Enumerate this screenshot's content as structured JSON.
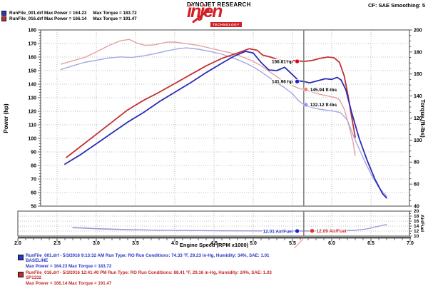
{
  "header": {
    "brand": "DYNOJET RESEARCH",
    "logo_text": "injen",
    "logo_sub": "TECHNOLOGY",
    "correction": "CF: SAE  Smoothing: 5",
    "top_legend": [
      {
        "label_left": "RunFile_001.drf Max Power = 164.23",
        "label_right": "Max Torque = 183.72",
        "color": "#2936c4"
      },
      {
        "label_left": "RunFile_016.drf Max Power = 166.14",
        "label_right": "Max Torque = 191.47",
        "color": "#c42929"
      }
    ]
  },
  "chart_data": {
    "type": "line",
    "x_axis": {
      "label": "Engine Speed (RPM x1000)",
      "min": 2.0,
      "max": 7.0,
      "major_step": 0.5,
      "minor_step": 0.1
    },
    "power_axis": {
      "label": "Power (hp)",
      "min": 50,
      "max": 180,
      "major_step": 10,
      "minor_step": 2
    },
    "torque_axis": {
      "label": "Torque (ft-lbs)",
      "min": 40,
      "max": 200,
      "major_step": 20,
      "minor_step": 5
    },
    "af_axis": {
      "label": "Air/Fuel",
      "min": 10,
      "max": 20,
      "major_step": 2,
      "minor_step": 1
    },
    "grid": true,
    "series": [
      {
        "name": "RunFile_016-torque",
        "axis": "torque",
        "color": "#e2a2a2",
        "width": 1.4,
        "points": [
          [
            2.55,
            169
          ],
          [
            2.7,
            172
          ],
          [
            2.85,
            175
          ],
          [
            3.0,
            180
          ],
          [
            3.15,
            185.5
          ],
          [
            3.3,
            190
          ],
          [
            3.42,
            191.47
          ],
          [
            3.52,
            188
          ],
          [
            3.62,
            186
          ],
          [
            3.75,
            186.5
          ],
          [
            3.9,
            189
          ],
          [
            4.0,
            189
          ],
          [
            4.15,
            187.5
          ],
          [
            4.3,
            186
          ],
          [
            4.45,
            183.5
          ],
          [
            4.6,
            181
          ],
          [
            4.75,
            178.5
          ],
          [
            4.9,
            174.5
          ],
          [
            5.0,
            171.5
          ],
          [
            5.1,
            167.5
          ],
          [
            5.2,
            162.5
          ],
          [
            5.3,
            157.5
          ],
          [
            5.4,
            153
          ],
          [
            5.5,
            149.5
          ],
          [
            5.58,
            147
          ],
          [
            5.644,
            145.94
          ],
          [
            5.75,
            143.5
          ],
          [
            5.85,
            141.5
          ],
          [
            5.95,
            140
          ],
          [
            6.05,
            138.5
          ],
          [
            6.1,
            136.5
          ],
          [
            6.16,
            128
          ],
          [
            6.22,
            113
          ],
          [
            6.27,
            99
          ],
          [
            6.3,
            86
          ]
        ]
      },
      {
        "name": "RunFile_001-torque",
        "axis": "torque",
        "color": "#a2a8e2",
        "width": 1.4,
        "points": [
          [
            2.55,
            164
          ],
          [
            2.7,
            167.5
          ],
          [
            2.85,
            170.5
          ],
          [
            3.0,
            172.5
          ],
          [
            3.15,
            174.5
          ],
          [
            3.3,
            175.5
          ],
          [
            3.45,
            175
          ],
          [
            3.6,
            176.5
          ],
          [
            3.75,
            178.5
          ],
          [
            3.9,
            181
          ],
          [
            4.05,
            183
          ],
          [
            4.15,
            183.72
          ],
          [
            4.3,
            182.5
          ],
          [
            4.45,
            180.5
          ],
          [
            4.6,
            178
          ],
          [
            4.75,
            174.5
          ],
          [
            4.9,
            170
          ],
          [
            5.0,
            166.5
          ],
          [
            5.1,
            162
          ],
          [
            5.2,
            157
          ],
          [
            5.3,
            152
          ],
          [
            5.4,
            147.5
          ],
          [
            5.5,
            142
          ],
          [
            5.58,
            135.5
          ],
          [
            5.644,
            132.12
          ],
          [
            5.75,
            129.5
          ],
          [
            5.85,
            128
          ],
          [
            5.95,
            127
          ],
          [
            6.05,
            126
          ],
          [
            6.12,
            124.5
          ],
          [
            6.2,
            118
          ],
          [
            6.3,
            100
          ],
          [
            6.4,
            84
          ],
          [
            6.5,
            69
          ],
          [
            6.6,
            57
          ],
          [
            6.7,
            49
          ]
        ]
      },
      {
        "name": "RunFile_016-power",
        "axis": "power",
        "color": "#c43032",
        "width": 1.8,
        "points": [
          [
            2.62,
            86
          ],
          [
            2.8,
            94
          ],
          [
            3.0,
            103
          ],
          [
            3.2,
            112
          ],
          [
            3.4,
            121
          ],
          [
            3.6,
            128
          ],
          [
            3.8,
            134
          ],
          [
            4.0,
            140.5
          ],
          [
            4.2,
            147
          ],
          [
            4.4,
            153.5
          ],
          [
            4.6,
            159
          ],
          [
            4.8,
            163
          ],
          [
            4.95,
            166.14
          ],
          [
            5.05,
            165
          ],
          [
            5.12,
            161.5
          ],
          [
            5.22,
            160
          ],
          [
            5.32,
            158
          ],
          [
            5.42,
            157
          ],
          [
            5.52,
            157.5
          ],
          [
            5.644,
            156.81
          ],
          [
            5.75,
            157.5
          ],
          [
            5.85,
            159
          ],
          [
            5.95,
            160
          ],
          [
            6.03,
            159.5
          ],
          [
            6.1,
            156
          ],
          [
            6.16,
            146
          ],
          [
            6.21,
            131
          ],
          [
            6.26,
            114
          ],
          [
            6.3,
            101
          ]
        ]
      },
      {
        "name": "RunFile_001-power",
        "axis": "power",
        "color": "#2b2cb4",
        "width": 1.8,
        "points": [
          [
            2.6,
            81
          ],
          [
            2.8,
            88
          ],
          [
            3.0,
            96
          ],
          [
            3.2,
            104
          ],
          [
            3.4,
            112
          ],
          [
            3.6,
            119
          ],
          [
            3.8,
            127
          ],
          [
            4.0,
            134
          ],
          [
            4.2,
            141
          ],
          [
            4.4,
            148.5
          ],
          [
            4.6,
            155.5
          ],
          [
            4.75,
            160.5
          ],
          [
            4.9,
            164.23
          ],
          [
            5.0,
            163
          ],
          [
            5.1,
            156
          ],
          [
            5.2,
            150.5
          ],
          [
            5.3,
            150
          ],
          [
            5.4,
            152.5
          ],
          [
            5.5,
            147
          ],
          [
            5.58,
            142.5
          ],
          [
            5.644,
            141.96
          ],
          [
            5.72,
            141
          ],
          [
            5.82,
            142.5
          ],
          [
            5.92,
            144
          ],
          [
            6.0,
            143.5
          ],
          [
            6.07,
            145
          ],
          [
            6.12,
            143
          ],
          [
            6.18,
            136
          ],
          [
            6.25,
            120
          ],
          [
            6.35,
            100
          ],
          [
            6.45,
            84
          ],
          [
            6.55,
            70
          ],
          [
            6.65,
            59
          ],
          [
            6.7,
            56
          ]
        ]
      },
      {
        "name": "RunFile_016-airfuel",
        "axis": "af",
        "color": "#dd9a94",
        "width": 1.2,
        "points": [
          [
            2.7,
            13.3
          ],
          [
            3.0,
            12.9
          ],
          [
            3.4,
            12.55
          ],
          [
            3.8,
            12.35
          ],
          [
            4.2,
            12.2
          ],
          [
            4.6,
            12.15
          ],
          [
            5.0,
            12.1
          ],
          [
            5.4,
            12.08
          ],
          [
            5.644,
            12.09
          ],
          [
            5.9,
            12.1
          ],
          [
            6.1,
            12.12
          ],
          [
            6.3,
            12.25
          ]
        ]
      },
      {
        "name": "RunFile_001-airfuel",
        "axis": "af",
        "color": "#8d92dd",
        "width": 1.2,
        "points": [
          [
            2.7,
            13.5
          ],
          [
            3.0,
            13.0
          ],
          [
            3.4,
            12.6
          ],
          [
            3.8,
            12.35
          ],
          [
            4.2,
            12.2
          ],
          [
            4.6,
            12.1
          ],
          [
            5.0,
            12.05
          ],
          [
            5.4,
            12.0
          ],
          [
            5.644,
            12.01
          ],
          [
            5.9,
            12.0
          ],
          [
            6.1,
            12.05
          ],
          [
            6.3,
            12.3
          ],
          [
            6.45,
            12.9
          ],
          [
            6.55,
            13.6
          ],
          [
            6.65,
            14.3
          ],
          [
            6.7,
            14.6
          ]
        ]
      }
    ],
    "cursor": {
      "x": 5.644,
      "label": "X = 5.644"
    },
    "callouts": [
      {
        "label": "156.81 hp",
        "axis": "power",
        "value": 156.81,
        "rpm": 5.56,
        "side": "left",
        "dot_color": "#e8000d",
        "text_color": "#000000"
      },
      {
        "label": "141.96 hp",
        "axis": "power",
        "value": 141.96,
        "rpm": 5.56,
        "side": "left",
        "dot_color": "#1d1de0",
        "text_color": "#000000"
      },
      {
        "label": "145.94 ft-lbs",
        "axis": "torque",
        "value": 145.94,
        "rpm": 5.67,
        "side": "right",
        "dot_color": "#ef8585",
        "text_color": "#000000"
      },
      {
        "label": "132.12 ft-lbs",
        "axis": "torque",
        "value": 132.12,
        "rpm": 5.67,
        "side": "right",
        "dot_color": "#9595ef",
        "text_color": "#000000"
      }
    ],
    "af_callouts": [
      {
        "label": "12.01 Air/Fuel",
        "value": 12.01,
        "rpm": 5.56,
        "side": "left",
        "dot_color": "#2424d8",
        "text_color": "#2233bb"
      },
      {
        "label": "12.09 Air/Fuel",
        "value": 12.09,
        "rpm": 5.75,
        "side": "right",
        "dot_color": "#e03030",
        "text_color": "#cc2222"
      }
    ]
  },
  "footer": {
    "runs": [
      {
        "line1": "RunFile_001.drf - 5/3/2016 9:13:32 AM  Run Type: RO  Run Conditions: 74.33 °F, 29.23 in-Hg,  Humidity:  34%, SAE: 1.01",
        "line2": "BASELINE",
        "line3": "Max Power = 164.23  Max Torque = 183.72",
        "color": "#2936c4"
      },
      {
        "line1": "RunFile_016.drf - 5/3/2016 12:41:40 PM  Run Type: RO  Run Conditions: 88.41 °F, 29.16 in-Hg,  Humidity:  24%, SAE: 1.03",
        "line2": "SP1332",
        "line3": "Max Power = 166.14  Max Torque = 191.47",
        "color": "#c42929"
      }
    ]
  }
}
